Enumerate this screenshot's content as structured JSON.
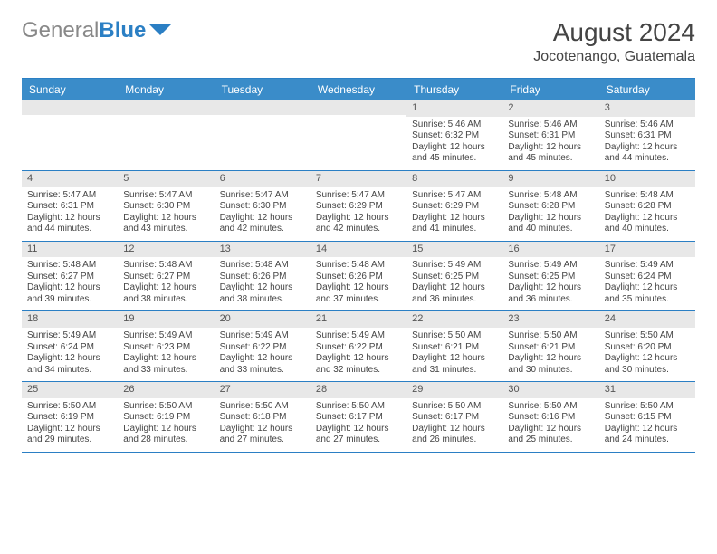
{
  "logo": {
    "part1": "General",
    "part2": "Blue"
  },
  "title": "August 2024",
  "location": "Jocotenango, Guatemala",
  "day_headers": [
    "Sunday",
    "Monday",
    "Tuesday",
    "Wednesday",
    "Thursday",
    "Friday",
    "Saturday"
  ],
  "colors": {
    "header_bg": "#3a8cc9",
    "border": "#2b7fc4",
    "daynum_bg": "#e8e8e8"
  },
  "weeks": [
    [
      {
        "num": "",
        "lines": []
      },
      {
        "num": "",
        "lines": []
      },
      {
        "num": "",
        "lines": []
      },
      {
        "num": "",
        "lines": []
      },
      {
        "num": "1",
        "lines": [
          "Sunrise: 5:46 AM",
          "Sunset: 6:32 PM",
          "Daylight: 12 hours",
          "and 45 minutes."
        ]
      },
      {
        "num": "2",
        "lines": [
          "Sunrise: 5:46 AM",
          "Sunset: 6:31 PM",
          "Daylight: 12 hours",
          "and 45 minutes."
        ]
      },
      {
        "num": "3",
        "lines": [
          "Sunrise: 5:46 AM",
          "Sunset: 6:31 PM",
          "Daylight: 12 hours",
          "and 44 minutes."
        ]
      }
    ],
    [
      {
        "num": "4",
        "lines": [
          "Sunrise: 5:47 AM",
          "Sunset: 6:31 PM",
          "Daylight: 12 hours",
          "and 44 minutes."
        ]
      },
      {
        "num": "5",
        "lines": [
          "Sunrise: 5:47 AM",
          "Sunset: 6:30 PM",
          "Daylight: 12 hours",
          "and 43 minutes."
        ]
      },
      {
        "num": "6",
        "lines": [
          "Sunrise: 5:47 AM",
          "Sunset: 6:30 PM",
          "Daylight: 12 hours",
          "and 42 minutes."
        ]
      },
      {
        "num": "7",
        "lines": [
          "Sunrise: 5:47 AM",
          "Sunset: 6:29 PM",
          "Daylight: 12 hours",
          "and 42 minutes."
        ]
      },
      {
        "num": "8",
        "lines": [
          "Sunrise: 5:47 AM",
          "Sunset: 6:29 PM",
          "Daylight: 12 hours",
          "and 41 minutes."
        ]
      },
      {
        "num": "9",
        "lines": [
          "Sunrise: 5:48 AM",
          "Sunset: 6:28 PM",
          "Daylight: 12 hours",
          "and 40 minutes."
        ]
      },
      {
        "num": "10",
        "lines": [
          "Sunrise: 5:48 AM",
          "Sunset: 6:28 PM",
          "Daylight: 12 hours",
          "and 40 minutes."
        ]
      }
    ],
    [
      {
        "num": "11",
        "lines": [
          "Sunrise: 5:48 AM",
          "Sunset: 6:27 PM",
          "Daylight: 12 hours",
          "and 39 minutes."
        ]
      },
      {
        "num": "12",
        "lines": [
          "Sunrise: 5:48 AM",
          "Sunset: 6:27 PM",
          "Daylight: 12 hours",
          "and 38 minutes."
        ]
      },
      {
        "num": "13",
        "lines": [
          "Sunrise: 5:48 AM",
          "Sunset: 6:26 PM",
          "Daylight: 12 hours",
          "and 38 minutes."
        ]
      },
      {
        "num": "14",
        "lines": [
          "Sunrise: 5:48 AM",
          "Sunset: 6:26 PM",
          "Daylight: 12 hours",
          "and 37 minutes."
        ]
      },
      {
        "num": "15",
        "lines": [
          "Sunrise: 5:49 AM",
          "Sunset: 6:25 PM",
          "Daylight: 12 hours",
          "and 36 minutes."
        ]
      },
      {
        "num": "16",
        "lines": [
          "Sunrise: 5:49 AM",
          "Sunset: 6:25 PM",
          "Daylight: 12 hours",
          "and 36 minutes."
        ]
      },
      {
        "num": "17",
        "lines": [
          "Sunrise: 5:49 AM",
          "Sunset: 6:24 PM",
          "Daylight: 12 hours",
          "and 35 minutes."
        ]
      }
    ],
    [
      {
        "num": "18",
        "lines": [
          "Sunrise: 5:49 AM",
          "Sunset: 6:24 PM",
          "Daylight: 12 hours",
          "and 34 minutes."
        ]
      },
      {
        "num": "19",
        "lines": [
          "Sunrise: 5:49 AM",
          "Sunset: 6:23 PM",
          "Daylight: 12 hours",
          "and 33 minutes."
        ]
      },
      {
        "num": "20",
        "lines": [
          "Sunrise: 5:49 AM",
          "Sunset: 6:22 PM",
          "Daylight: 12 hours",
          "and 33 minutes."
        ]
      },
      {
        "num": "21",
        "lines": [
          "Sunrise: 5:49 AM",
          "Sunset: 6:22 PM",
          "Daylight: 12 hours",
          "and 32 minutes."
        ]
      },
      {
        "num": "22",
        "lines": [
          "Sunrise: 5:50 AM",
          "Sunset: 6:21 PM",
          "Daylight: 12 hours",
          "and 31 minutes."
        ]
      },
      {
        "num": "23",
        "lines": [
          "Sunrise: 5:50 AM",
          "Sunset: 6:21 PM",
          "Daylight: 12 hours",
          "and 30 minutes."
        ]
      },
      {
        "num": "24",
        "lines": [
          "Sunrise: 5:50 AM",
          "Sunset: 6:20 PM",
          "Daylight: 12 hours",
          "and 30 minutes."
        ]
      }
    ],
    [
      {
        "num": "25",
        "lines": [
          "Sunrise: 5:50 AM",
          "Sunset: 6:19 PM",
          "Daylight: 12 hours",
          "and 29 minutes."
        ]
      },
      {
        "num": "26",
        "lines": [
          "Sunrise: 5:50 AM",
          "Sunset: 6:19 PM",
          "Daylight: 12 hours",
          "and 28 minutes."
        ]
      },
      {
        "num": "27",
        "lines": [
          "Sunrise: 5:50 AM",
          "Sunset: 6:18 PM",
          "Daylight: 12 hours",
          "and 27 minutes."
        ]
      },
      {
        "num": "28",
        "lines": [
          "Sunrise: 5:50 AM",
          "Sunset: 6:17 PM",
          "Daylight: 12 hours",
          "and 27 minutes."
        ]
      },
      {
        "num": "29",
        "lines": [
          "Sunrise: 5:50 AM",
          "Sunset: 6:17 PM",
          "Daylight: 12 hours",
          "and 26 minutes."
        ]
      },
      {
        "num": "30",
        "lines": [
          "Sunrise: 5:50 AM",
          "Sunset: 6:16 PM",
          "Daylight: 12 hours",
          "and 25 minutes."
        ]
      },
      {
        "num": "31",
        "lines": [
          "Sunrise: 5:50 AM",
          "Sunset: 6:15 PM",
          "Daylight: 12 hours",
          "and 24 minutes."
        ]
      }
    ]
  ]
}
